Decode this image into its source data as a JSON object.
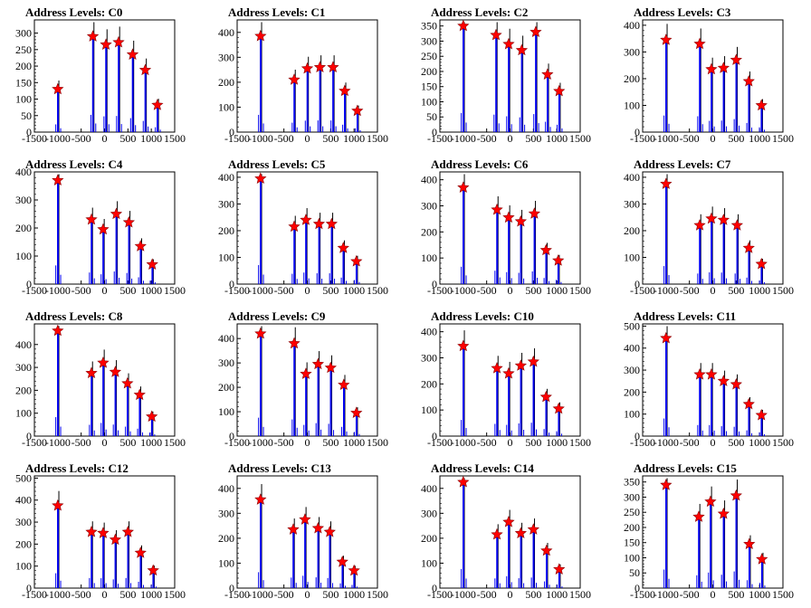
{
  "chart_data": [
    {
      "type": "histogram",
      "title": "Address Levels: C0",
      "xlim": [
        -1500,
        1500
      ],
      "ylim": [
        0,
        340
      ],
      "yticks": [
        0,
        50,
        100,
        150,
        200,
        250,
        300
      ],
      "xticks": [
        -1500,
        -1000,
        -500,
        0,
        500,
        1000,
        1500
      ],
      "peaks_x": [
        -1000,
        -250,
        30,
        300,
        600,
        870,
        1130
      ],
      "peaks_y": [
        130,
        290,
        265,
        272,
        235,
        188,
        82
      ]
    },
    {
      "type": "histogram",
      "title": "Address Levels: C1",
      "xlim": [
        -1500,
        1500
      ],
      "ylim": [
        0,
        450
      ],
      "yticks": [
        0,
        100,
        200,
        300,
        400
      ],
      "xticks": [
        -1500,
        -1000,
        -500,
        0,
        500,
        1000,
        1500
      ],
      "peaks_x": [
        -1000,
        -280,
        0,
        270,
        550,
        800,
        1070
      ],
      "peaks_y": [
        385,
        210,
        255,
        260,
        260,
        165,
        85
      ]
    },
    {
      "type": "histogram",
      "title": "Address Levels: C2",
      "xlim": [
        -1500,
        1500
      ],
      "ylim": [
        0,
        370
      ],
      "yticks": [
        0,
        50,
        100,
        150,
        200,
        250,
        300,
        350
      ],
      "xticks": [
        -1500,
        -1000,
        -500,
        0,
        500,
        1000,
        1500
      ],
      "peaks_x": [
        -1000,
        -300,
        -30,
        250,
        550,
        800,
        1050
      ],
      "peaks_y": [
        350,
        320,
        290,
        270,
        330,
        190,
        135
      ]
    },
    {
      "type": "histogram",
      "title": "Address Levels: C3",
      "xlim": [
        -1500,
        1500
      ],
      "ylim": [
        0,
        420
      ],
      "yticks": [
        0,
        100,
        200,
        300,
        400
      ],
      "xticks": [
        -1500,
        -1000,
        -500,
        0,
        500,
        1000,
        1500
      ],
      "peaks_x": [
        -1000,
        -280,
        -30,
        230,
        500,
        770,
        1040
      ],
      "peaks_y": [
        345,
        330,
        235,
        240,
        270,
        190,
        100
      ]
    },
    {
      "type": "histogram",
      "title": "Address Levels: C4",
      "xlim": [
        -1500,
        1500
      ],
      "ylim": [
        0,
        400
      ],
      "yticks": [
        0,
        100,
        200,
        300,
        400
      ],
      "xticks": [
        -1500,
        -1000,
        -500,
        0,
        500,
        1000,
        1500
      ],
      "peaks_x": [
        -1000,
        -280,
        -30,
        250,
        520,
        770,
        1020
      ],
      "peaks_y": [
        370,
        230,
        195,
        250,
        220,
        135,
        70
      ]
    },
    {
      "type": "histogram",
      "title": "Address Levels: C5",
      "xlim": [
        -1500,
        1500
      ],
      "ylim": [
        0,
        420
      ],
      "yticks": [
        0,
        100,
        200,
        300,
        400
      ],
      "xticks": [
        -1500,
        -1000,
        -500,
        0,
        500,
        1000,
        1500
      ],
      "peaks_x": [
        -1000,
        -280,
        -30,
        250,
        520,
        770,
        1050
      ],
      "peaks_y": [
        395,
        215,
        240,
        225,
        225,
        135,
        85
      ]
    },
    {
      "type": "histogram",
      "title": "Address Levels: C6",
      "xlim": [
        -1500,
        1500
      ],
      "ylim": [
        0,
        430
      ],
      "yticks": [
        0,
        100,
        200,
        300,
        400
      ],
      "xticks": [
        -1500,
        -1000,
        -500,
        0,
        500,
        1000,
        1500
      ],
      "peaks_x": [
        -1000,
        -280,
        -30,
        230,
        520,
        770,
        1030
      ],
      "peaks_y": [
        370,
        285,
        255,
        240,
        270,
        130,
        90
      ]
    },
    {
      "type": "histogram",
      "title": "Address Levels: C7",
      "xlim": [
        -1500,
        1500
      ],
      "ylim": [
        0,
        420
      ],
      "yticks": [
        0,
        100,
        200,
        300,
        400
      ],
      "xticks": [
        -1500,
        -1000,
        -500,
        0,
        500,
        1000,
        1500
      ],
      "peaks_x": [
        -1000,
        -280,
        -30,
        230,
        520,
        770,
        1040
      ],
      "peaks_y": [
        375,
        220,
        245,
        240,
        220,
        135,
        75
      ]
    },
    {
      "type": "histogram",
      "title": "Address Levels: C8",
      "xlim": [
        -1500,
        1500
      ],
      "ylim": [
        0,
        490
      ],
      "yticks": [
        0,
        100,
        200,
        300,
        400
      ],
      "xticks": [
        -1500,
        -1000,
        -500,
        0,
        500,
        1000,
        1500
      ],
      "peaks_x": [
        -1000,
        -280,
        -30,
        230,
        490,
        750,
        1010
      ],
      "peaks_y": [
        460,
        275,
        320,
        280,
        230,
        180,
        85
      ]
    },
    {
      "type": "histogram",
      "title": "Address Levels: C9",
      "xlim": [
        -1500,
        1500
      ],
      "ylim": [
        0,
        460
      ],
      "yticks": [
        0,
        100,
        200,
        300,
        400
      ],
      "xticks": [
        -1500,
        -1000,
        -500,
        0,
        500,
        1000,
        1500
      ],
      "peaks_x": [
        -1000,
        -280,
        -30,
        230,
        500,
        780,
        1050
      ],
      "peaks_y": [
        420,
        380,
        255,
        295,
        280,
        210,
        95
      ]
    },
    {
      "type": "histogram",
      "title": "Address Levels: C10",
      "xlim": [
        -1500,
        1500
      ],
      "ylim": [
        0,
        430
      ],
      "yticks": [
        0,
        100,
        200,
        300,
        400
      ],
      "xticks": [
        -1500,
        -1000,
        -500,
        0,
        500,
        1000,
        1500
      ],
      "peaks_x": [
        -1000,
        -280,
        -30,
        230,
        500,
        770,
        1040
      ],
      "peaks_y": [
        345,
        260,
        240,
        270,
        285,
        150,
        105
      ]
    },
    {
      "type": "histogram",
      "title": "Address Levels: C11",
      "xlim": [
        -1500,
        1500
      ],
      "ylim": [
        0,
        510
      ],
      "yticks": [
        0,
        100,
        200,
        300,
        400,
        500
      ],
      "xticks": [
        -1500,
        -1000,
        -500,
        0,
        500,
        1000,
        1500
      ],
      "peaks_x": [
        -1000,
        -280,
        -30,
        230,
        500,
        770,
        1040
      ],
      "peaks_y": [
        445,
        280,
        280,
        250,
        235,
        145,
        95
      ]
    },
    {
      "type": "histogram",
      "title": "Address Levels: C12",
      "xlim": [
        -1500,
        1500
      ],
      "ylim": [
        0,
        510
      ],
      "yticks": [
        0,
        100,
        200,
        300,
        400,
        500
      ],
      "xticks": [
        -1500,
        -1000,
        -500,
        0,
        500,
        1000,
        1500
      ],
      "peaks_x": [
        -1000,
        -280,
        -30,
        230,
        500,
        770,
        1040
      ],
      "peaks_y": [
        375,
        255,
        250,
        220,
        255,
        160,
        80
      ]
    },
    {
      "type": "histogram",
      "title": "Address Levels: C13",
      "xlim": [
        -1500,
        1500
      ],
      "ylim": [
        0,
        450
      ],
      "yticks": [
        0,
        100,
        200,
        300,
        400
      ],
      "xticks": [
        -1500,
        -1000,
        -500,
        0,
        500,
        1000,
        1500
      ],
      "peaks_x": [
        -1000,
        -300,
        -50,
        230,
        480,
        750,
        1000
      ],
      "peaks_y": [
        355,
        235,
        275,
        240,
        225,
        105,
        70
      ]
    },
    {
      "type": "histogram",
      "title": "Address Levels: C14",
      "xlim": [
        -1500,
        1500
      ],
      "ylim": [
        0,
        450
      ],
      "yticks": [
        0,
        100,
        200,
        300,
        400
      ],
      "xticks": [
        -1500,
        -1000,
        -500,
        0,
        500,
        1000,
        1500
      ],
      "peaks_x": [
        -1000,
        -280,
        -30,
        230,
        500,
        780,
        1050
      ],
      "peaks_y": [
        425,
        215,
        265,
        220,
        235,
        150,
        75
      ]
    },
    {
      "type": "histogram",
      "title": "Address Levels: C15",
      "xlim": [
        -1500,
        1500
      ],
      "ylim": [
        0,
        370
      ],
      "yticks": [
        0,
        50,
        100,
        150,
        200,
        250,
        300,
        350
      ],
      "xticks": [
        -1500,
        -1000,
        -500,
        0,
        500,
        1000,
        1500
      ],
      "peaks_x": [
        -1000,
        -300,
        -50,
        230,
        500,
        780,
        1050
      ],
      "peaks_y": [
        340,
        235,
        285,
        245,
        305,
        145,
        95
      ]
    }
  ],
  "colors": {
    "histogram": "#0000ee",
    "envelope": "#000000",
    "marker": "#ff0000",
    "background": "#ffffff"
  },
  "marker_icon": "star-icon"
}
